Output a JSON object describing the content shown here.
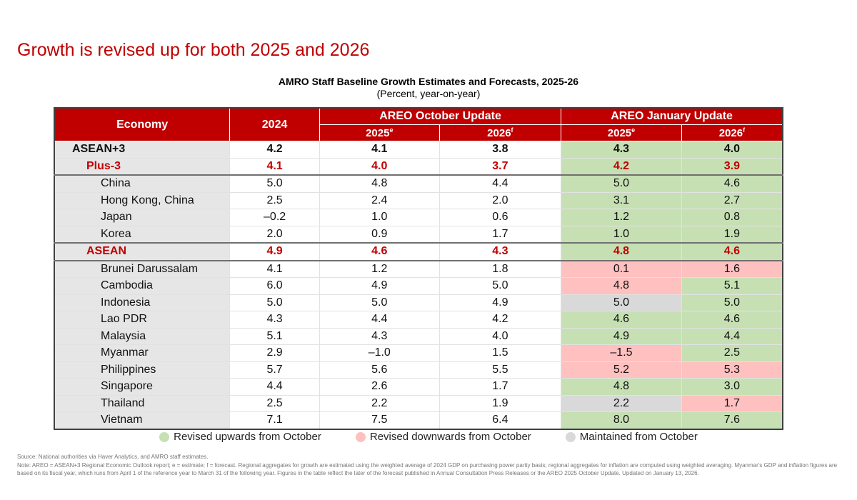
{
  "slide_title": "Growth is revised up for both 2025 and 2026",
  "table_title": "AMRO Staff Baseline Growth Estimates and Forecasts, 2025-26",
  "table_subtitle": "(Percent, year-on-year)",
  "colors": {
    "header": "#c00000",
    "up": "#c6e0b4",
    "down": "#ffc0c0",
    "same": "#d9d9d9"
  },
  "headers": {
    "economy": "Economy",
    "y2024": "2024",
    "october": "AREO October Update",
    "january": "AREO January Update",
    "y2025": "2025",
    "y2025_sup": "e",
    "y2026": "2026",
    "y2026_sup": "f"
  },
  "rows": [
    {
      "economy": "ASEAN+3",
      "level": 0,
      "y2024": "4.2",
      "oct2025": "4.1",
      "oct2026": "3.8",
      "jan2025": "4.3",
      "jan2026": "4.0",
      "s2025": "up",
      "s2026": "up"
    },
    {
      "economy": "Plus-3",
      "level": 1,
      "y2024": "4.1",
      "oct2025": "4.0",
      "oct2026": "3.7",
      "jan2025": "4.2",
      "jan2026": "3.9",
      "s2025": "up",
      "s2026": "up"
    },
    {
      "economy": "China",
      "level": 2,
      "y2024": "5.0",
      "oct2025": "4.8",
      "oct2026": "4.4",
      "jan2025": "5.0",
      "jan2026": "4.6",
      "s2025": "up",
      "s2026": "up"
    },
    {
      "economy": "Hong Kong, China",
      "level": 2,
      "y2024": "2.5",
      "oct2025": "2.4",
      "oct2026": "2.0",
      "jan2025": "3.1",
      "jan2026": "2.7",
      "s2025": "up",
      "s2026": "up"
    },
    {
      "economy": "Japan",
      "level": 2,
      "y2024": "–0.2",
      "oct2025": "1.0",
      "oct2026": "0.6",
      "jan2025": "1.2",
      "jan2026": "0.8",
      "s2025": "up",
      "s2026": "up"
    },
    {
      "economy": "Korea",
      "level": 2,
      "y2024": "2.0",
      "oct2025": "0.9",
      "oct2026": "1.7",
      "jan2025": "1.0",
      "jan2026": "1.9",
      "s2025": "up",
      "s2026": "up"
    },
    {
      "economy": "ASEAN",
      "level": 1,
      "y2024": "4.9",
      "oct2025": "4.6",
      "oct2026": "4.3",
      "jan2025": "4.8",
      "jan2026": "4.6",
      "s2025": "up",
      "s2026": "up"
    },
    {
      "economy": "Brunei Darussalam",
      "level": 2,
      "y2024": "4.1",
      "oct2025": "1.2",
      "oct2026": "1.8",
      "jan2025": "0.1",
      "jan2026": "1.6",
      "s2025": "down",
      "s2026": "down"
    },
    {
      "economy": "Cambodia",
      "level": 2,
      "y2024": "6.0",
      "oct2025": "4.9",
      "oct2026": "5.0",
      "jan2025": "4.8",
      "jan2026": "5.1",
      "s2025": "down",
      "s2026": "up"
    },
    {
      "economy": "Indonesia",
      "level": 2,
      "y2024": "5.0",
      "oct2025": "5.0",
      "oct2026": "4.9",
      "jan2025": "5.0",
      "jan2026": "5.0",
      "s2025": "same",
      "s2026": "up"
    },
    {
      "economy": "Lao PDR",
      "level": 2,
      "y2024": "4.3",
      "oct2025": "4.4",
      "oct2026": "4.2",
      "jan2025": "4.6",
      "jan2026": "4.6",
      "s2025": "up",
      "s2026": "up"
    },
    {
      "economy": "Malaysia",
      "level": 2,
      "y2024": "5.1",
      "oct2025": "4.3",
      "oct2026": "4.0",
      "jan2025": "4.9",
      "jan2026": "4.4",
      "s2025": "up",
      "s2026": "up"
    },
    {
      "economy": "Myanmar",
      "level": 2,
      "y2024": "2.9",
      "oct2025": "–1.0",
      "oct2026": "1.5",
      "jan2025": "–1.5",
      "jan2026": "2.5",
      "s2025": "down",
      "s2026": "up"
    },
    {
      "economy": "Philippines",
      "level": 2,
      "y2024": "5.7",
      "oct2025": "5.6",
      "oct2026": "5.5",
      "jan2025": "5.2",
      "jan2026": "5.3",
      "s2025": "down",
      "s2026": "down"
    },
    {
      "economy": "Singapore",
      "level": 2,
      "y2024": "4.4",
      "oct2025": "2.6",
      "oct2026": "1.7",
      "jan2025": "4.8",
      "jan2026": "3.0",
      "s2025": "up",
      "s2026": "up"
    },
    {
      "economy": "Thailand",
      "level": 2,
      "y2024": "2.5",
      "oct2025": "2.2",
      "oct2026": "1.9",
      "jan2025": "2.2",
      "jan2026": "1.7",
      "s2025": "same",
      "s2026": "down"
    },
    {
      "economy": "Vietnam",
      "level": 2,
      "y2024": "7.1",
      "oct2025": "7.5",
      "oct2026": "6.4",
      "jan2025": "8.0",
      "jan2026": "7.6",
      "s2025": "up",
      "s2026": "up"
    }
  ],
  "legend": [
    {
      "label": "Revised upwards from October",
      "status": "up"
    },
    {
      "label": "Revised downwards from October",
      "status": "down"
    },
    {
      "label": "Maintained from October",
      "status": "same"
    }
  ],
  "notes": {
    "source": "Source: National authorities via Haver Analytics, and AMRO staff estimates.",
    "note": "Note: AREO = ASEAN+3 Regional Economic Outlook report; e = estimate; f = forecast. Regional aggregates for growth are estimated using the weighted average of 2024 GDP on purchasing power parity basis; regional aggregates for inflation are computed using weighted averaging. Myanmar's GDP and inflation figures are based on its fiscal year, which runs from April 1 of the reference year to March 31 of the following year. Figures in the table reflect the later of the forecast published in Annual Consultation Press Releases or the AREO 2025 October Update. Updated on January 13, 2026."
  }
}
